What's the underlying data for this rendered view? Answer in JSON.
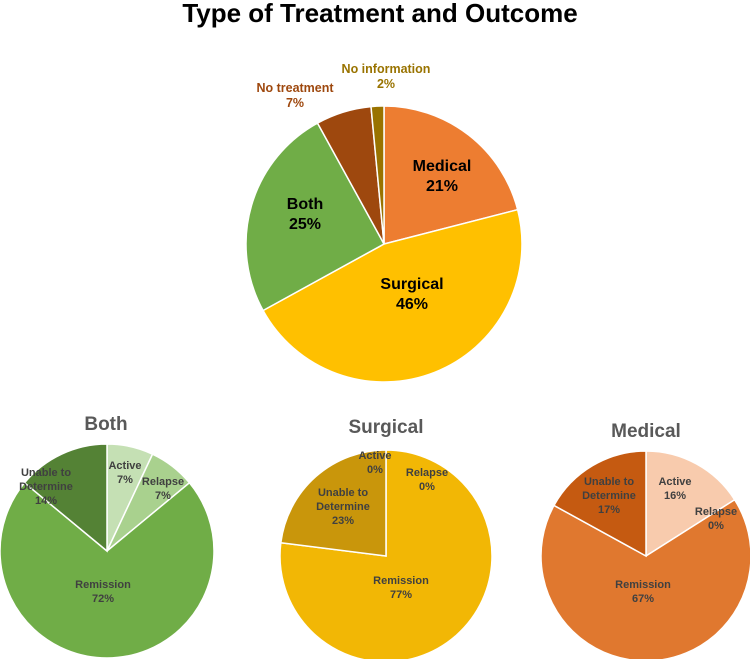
{
  "chart_data": [
    {
      "type": "pie",
      "title": "Type of Treatment and Outcome",
      "slices": [
        {
          "label": "Medical",
          "value": 21,
          "display": "21%",
          "color": "#ED7D31",
          "text_color": "#000000"
        },
        {
          "label": "Surgical",
          "value": 46,
          "display": "46%",
          "color": "#FFC000",
          "text_color": "#000000"
        },
        {
          "label": "Both",
          "value": 25,
          "display": "25%",
          "color": "#70AD47",
          "text_color": "#000000"
        },
        {
          "label": "No treatment",
          "value": 6.5,
          "display": "7%",
          "color": "#9E480E",
          "text_color": "#9E480E"
        },
        {
          "label": "No information",
          "value": 1.5,
          "display": "2%",
          "color": "#997300",
          "text_color": "#997300"
        }
      ]
    },
    {
      "type": "pie",
      "title": "Both",
      "slices": [
        {
          "label": "Active",
          "value": 7,
          "display": "7%",
          "color": "#C5E0B4",
          "text_color": "#404040"
        },
        {
          "label": "Relapse",
          "value": 7,
          "display": "7%",
          "color": "#A9D18E",
          "text_color": "#404040"
        },
        {
          "label": "Remission",
          "value": 72,
          "display": "72%",
          "color": "#70AD47",
          "text_color": "#404040"
        },
        {
          "label": "Unable to Determine",
          "value": 14,
          "display": "14%",
          "color": "#548235",
          "text_color": "#404040"
        }
      ]
    },
    {
      "type": "pie",
      "title": "Surgical",
      "slices": [
        {
          "label": "Active",
          "value": 0,
          "display": "0%",
          "color": "#FFE699",
          "text_color": "#404040"
        },
        {
          "label": "Relapse",
          "value": 0,
          "display": "0%",
          "color": "#FFD966",
          "text_color": "#404040"
        },
        {
          "label": "Remission",
          "value": 77,
          "display": "77%",
          "color": "#F2B705",
          "text_color": "#404040"
        },
        {
          "label": "Unable to Determine",
          "value": 23,
          "display": "23%",
          "color": "#C9960B",
          "text_color": "#404040"
        }
      ]
    },
    {
      "type": "pie",
      "title": "Medical",
      "slices": [
        {
          "label": "Active",
          "value": 16,
          "display": "16%",
          "color": "#F8CBAD",
          "text_color": "#404040"
        },
        {
          "label": "Relapse",
          "value": 0,
          "display": "0%",
          "color": "#F4B183",
          "text_color": "#404040"
        },
        {
          "label": "Remission",
          "value": 67,
          "display": "67%",
          "color": "#E0782F",
          "text_color": "#404040"
        },
        {
          "label": "Unable to Determine",
          "value": 17,
          "display": "17%",
          "color": "#C55A11",
          "text_color": "#404040"
        }
      ]
    }
  ]
}
